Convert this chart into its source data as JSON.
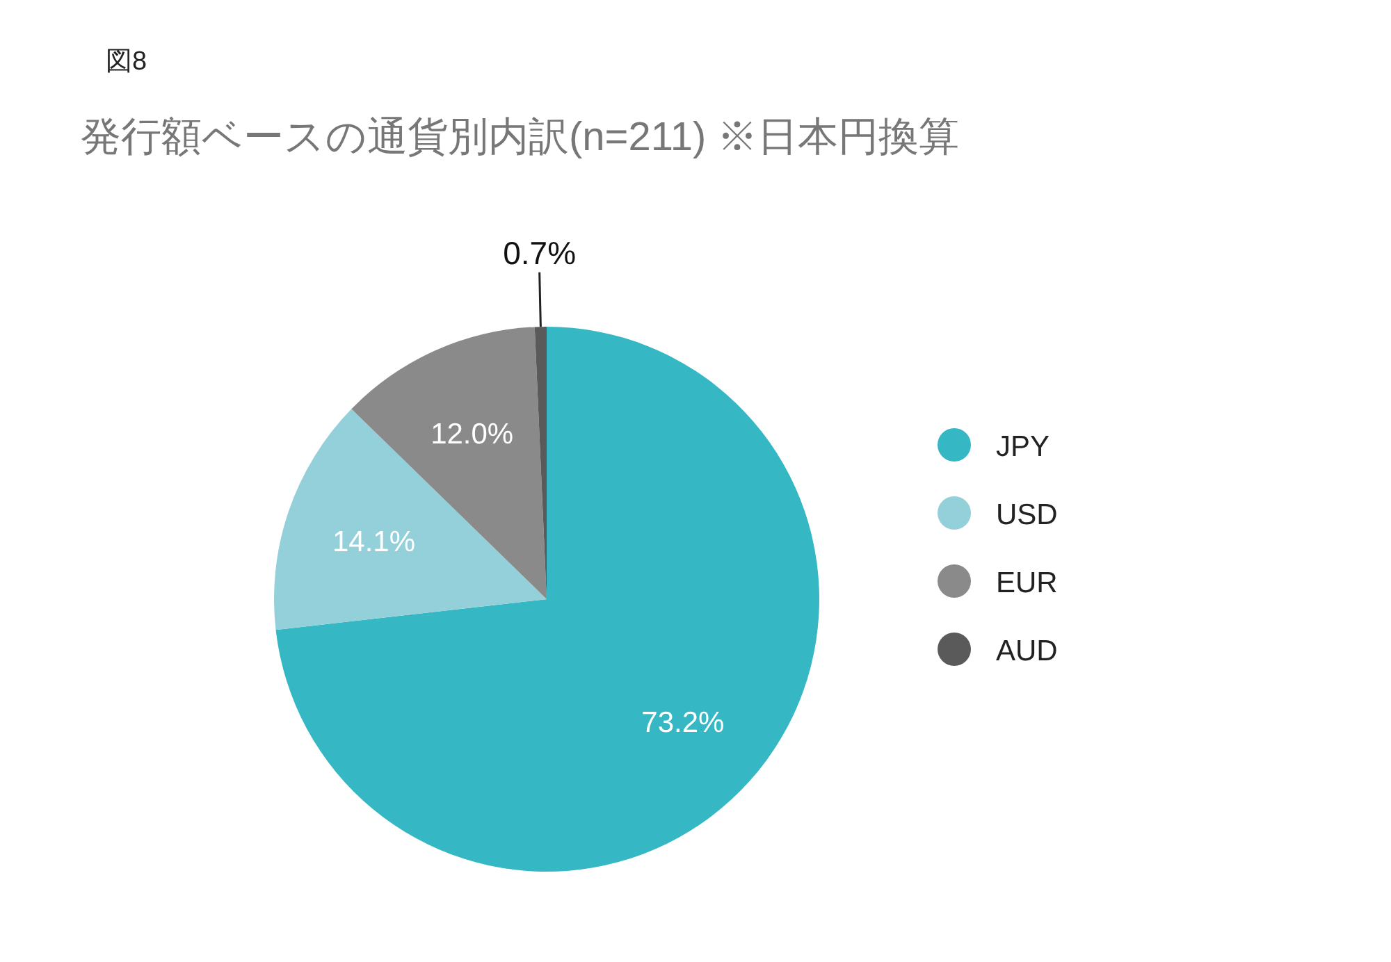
{
  "chart_data": {
    "type": "pie",
    "title": "発行額ベースの通貨別内訳(n=211) ※日本円換算",
    "annotations": [
      "図8"
    ],
    "categories": [
      "JPY",
      "USD",
      "EUR",
      "AUD"
    ],
    "values": [
      73.2,
      14.1,
      12.0,
      0.7
    ],
    "colors": [
      "#35b8c4",
      "#93d0da",
      "#8a8a8a",
      "#5a5a5a"
    ],
    "value_labels": [
      "73.2%",
      "14.1%",
      "12.0%",
      "0.7%"
    ],
    "legend": "right"
  }
}
